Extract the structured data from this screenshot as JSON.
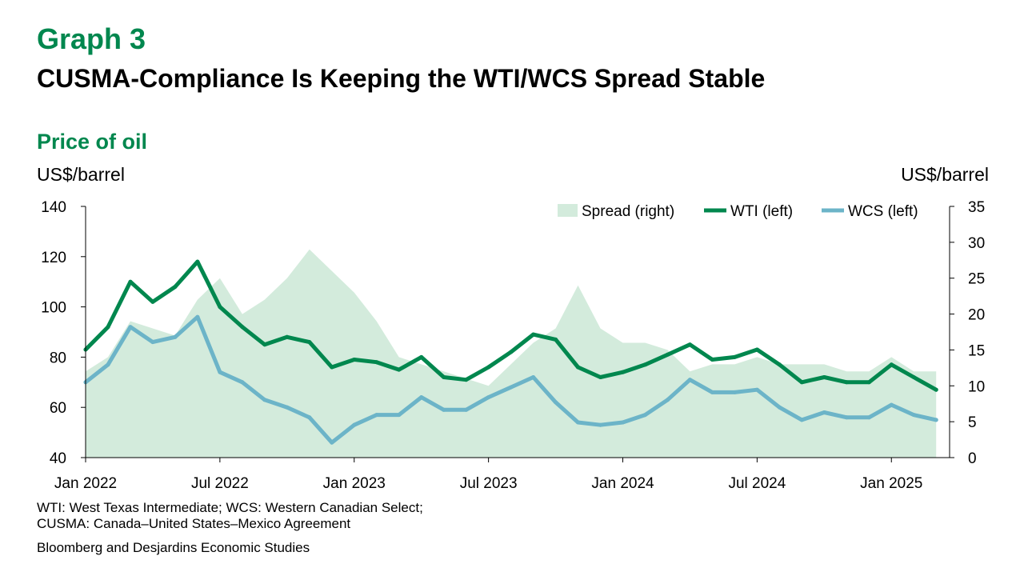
{
  "header": {
    "graph_number": "Graph 3",
    "title": "CUSMA-Compliance Is Keeping the WTI/WCS Spread Stable",
    "subtitle": "Price of oil",
    "left_unit": "US$/barrel",
    "right_unit": "US$/barrel"
  },
  "footer": {
    "note_line1": "WTI: West Texas Intermediate; WCS: Western Canadian Select;",
    "note_line2": "CUSMA: Canada–United States–Mexico Agreement",
    "source": "Bloomberg and Desjardins Economic Studies"
  },
  "colors": {
    "wti": "#00874e",
    "wcs": "#6cb4c8",
    "spread": "#d3ebdc",
    "title": "#00874e"
  },
  "chart_data": {
    "type": "line",
    "xlabel": "",
    "ylabel": "US$/barrel",
    "y2label": "US$/barrel",
    "x_ticks": [
      "Jan 2022",
      "Jul 2022",
      "Jan 2023",
      "Jul 2023",
      "Jan 2024",
      "Jul 2024",
      "Jan 2025"
    ],
    "ylim": [
      40,
      140
    ],
    "y_ticks": [
      40,
      60,
      80,
      100,
      120,
      140
    ],
    "y2lim": [
      0,
      35
    ],
    "y2_ticks": [
      0,
      5,
      10,
      15,
      20,
      25,
      30,
      35
    ],
    "legend_position": "top-right",
    "grid": false,
    "series": [
      {
        "name": "Spread (right)",
        "type": "area",
        "axis": "right",
        "x": [
          "2022-01",
          "2022-02",
          "2022-03",
          "2022-04",
          "2022-05",
          "2022-06",
          "2022-07",
          "2022-08",
          "2022-09",
          "2022-10",
          "2022-11",
          "2022-12",
          "2023-01",
          "2023-02",
          "2023-03",
          "2023-04",
          "2023-05",
          "2023-06",
          "2023-07",
          "2023-08",
          "2023-09",
          "2023-10",
          "2023-11",
          "2023-12",
          "2024-01",
          "2024-02",
          "2024-03",
          "2024-04",
          "2024-05",
          "2024-06",
          "2024-07",
          "2024-08",
          "2024-09",
          "2024-10",
          "2024-11",
          "2024-12",
          "2025-01",
          "2025-02",
          "2025-03"
        ],
        "values": [
          12,
          14,
          19,
          18,
          17,
          22,
          25,
          20,
          22,
          25,
          29,
          26,
          23,
          19,
          14,
          13,
          12,
          11,
          10,
          13,
          16,
          18,
          24,
          18,
          16,
          16,
          15,
          12,
          13,
          13,
          14,
          13,
          13,
          13,
          12,
          12,
          14,
          12,
          12
        ]
      },
      {
        "name": "WTI (left)",
        "type": "line",
        "axis": "left",
        "x": [
          "2022-01",
          "2022-02",
          "2022-03",
          "2022-04",
          "2022-05",
          "2022-06",
          "2022-07",
          "2022-08",
          "2022-09",
          "2022-10",
          "2022-11",
          "2022-12",
          "2023-01",
          "2023-02",
          "2023-03",
          "2023-04",
          "2023-05",
          "2023-06",
          "2023-07",
          "2023-08",
          "2023-09",
          "2023-10",
          "2023-11",
          "2023-12",
          "2024-01",
          "2024-02",
          "2024-03",
          "2024-04",
          "2024-05",
          "2024-06",
          "2024-07",
          "2024-08",
          "2024-09",
          "2024-10",
          "2024-11",
          "2024-12",
          "2025-01",
          "2025-02",
          "2025-03"
        ],
        "values": [
          83,
          92,
          110,
          102,
          108,
          118,
          100,
          92,
          85,
          88,
          86,
          76,
          79,
          78,
          75,
          80,
          72,
          71,
          76,
          82,
          89,
          87,
          76,
          72,
          74,
          77,
          81,
          85,
          79,
          80,
          83,
          77,
          70,
          72,
          70,
          70,
          77,
          72,
          67
        ]
      },
      {
        "name": "WCS (left)",
        "type": "line",
        "axis": "left",
        "x": [
          "2022-01",
          "2022-02",
          "2022-03",
          "2022-04",
          "2022-05",
          "2022-06",
          "2022-07",
          "2022-08",
          "2022-09",
          "2022-10",
          "2022-11",
          "2022-12",
          "2023-01",
          "2023-02",
          "2023-03",
          "2023-04",
          "2023-05",
          "2023-06",
          "2023-07",
          "2023-08",
          "2023-09",
          "2023-10",
          "2023-11",
          "2023-12",
          "2024-01",
          "2024-02",
          "2024-03",
          "2024-04",
          "2024-05",
          "2024-06",
          "2024-07",
          "2024-08",
          "2024-09",
          "2024-10",
          "2024-11",
          "2024-12",
          "2025-01",
          "2025-02",
          "2025-03"
        ],
        "values": [
          70,
          77,
          92,
          86,
          88,
          96,
          74,
          70,
          63,
          60,
          56,
          46,
          53,
          57,
          57,
          64,
          59,
          59,
          64,
          68,
          72,
          62,
          54,
          53,
          54,
          57,
          63,
          71,
          66,
          66,
          67,
          60,
          55,
          58,
          56,
          56,
          61,
          57,
          55
        ]
      }
    ]
  }
}
